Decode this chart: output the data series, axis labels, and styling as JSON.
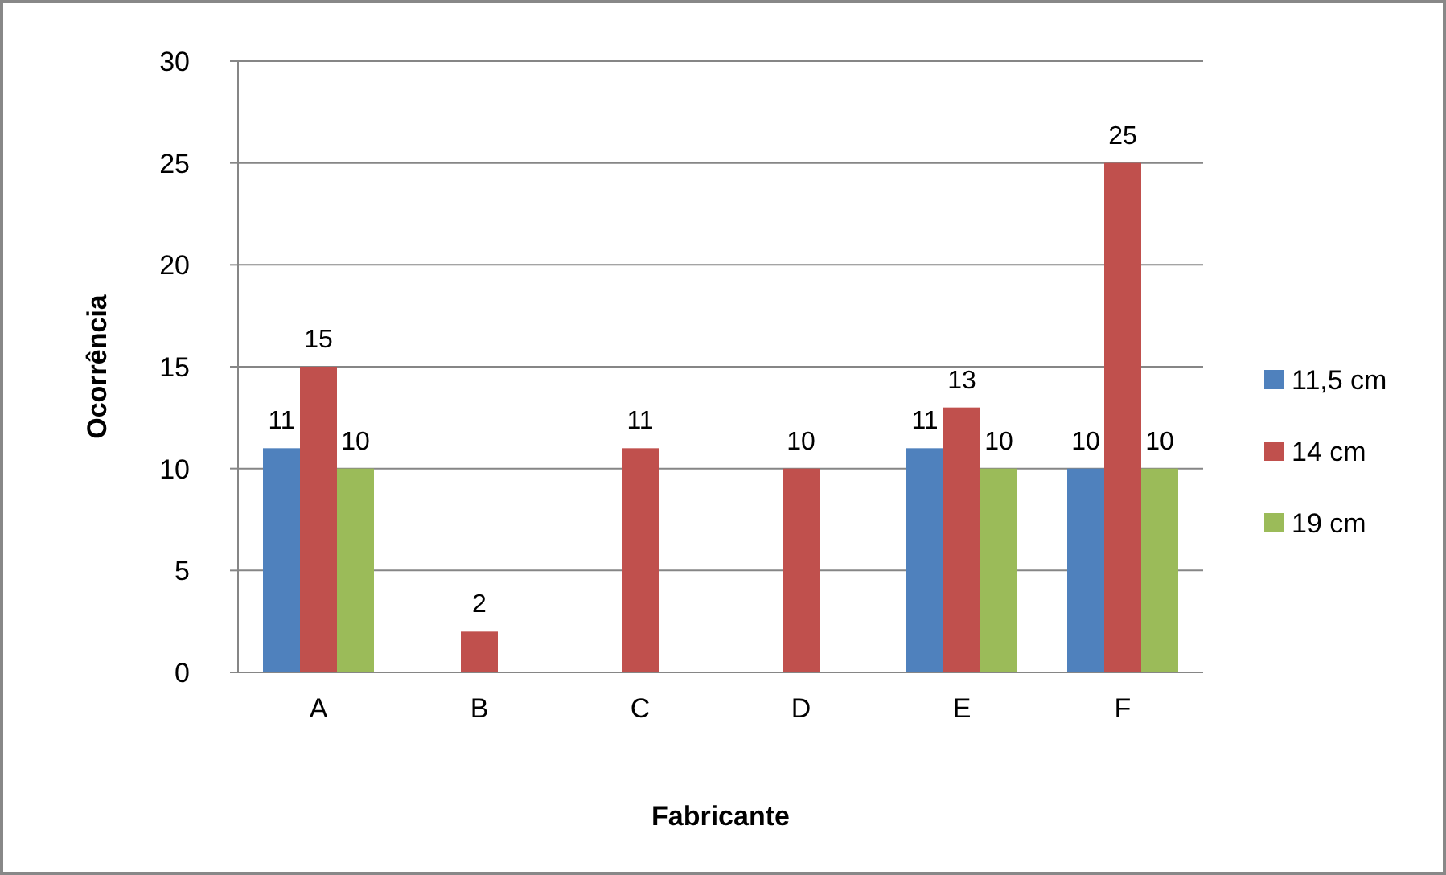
{
  "chart_data": {
    "type": "bar",
    "xlabel": "Fabricante",
    "ylabel": "Ocorrência",
    "categories": [
      "A",
      "B",
      "C",
      "D",
      "E",
      "F"
    ],
    "series": [
      {
        "name": "11,5 cm",
        "color": "#4f81bd",
        "values": [
          11,
          null,
          null,
          null,
          11,
          10
        ]
      },
      {
        "name": "14 cm",
        "color": "#c0504d",
        "values": [
          15,
          2,
          11,
          10,
          13,
          25
        ]
      },
      {
        "name": "19 cm",
        "color": "#9bbb59",
        "values": [
          10,
          null,
          null,
          null,
          10,
          10
        ]
      }
    ],
    "ylim": [
      0,
      30
    ],
    "yticks": [
      0,
      5,
      10,
      15,
      20,
      25,
      30
    ],
    "grid": "y",
    "legend": "right",
    "data_labels": true
  }
}
